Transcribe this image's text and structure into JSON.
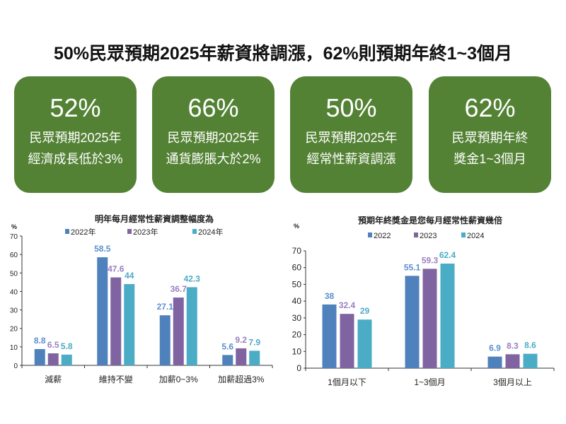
{
  "title": "50%民眾預期2025年薪資將調漲，62%則預期年終1~3個月",
  "cards": [
    {
      "value": "52%",
      "line1": "民眾預期2025年",
      "line2": "經濟成長低於3%"
    },
    {
      "value": "66%",
      "line1": "民眾預期2025年",
      "line2": "通貨膨脹大於2%"
    },
    {
      "value": "50%",
      "line1": "民眾預期2025年",
      "line2": "經常性薪資調漲"
    },
    {
      "value": "62%",
      "line1": "民眾預期年終",
      "line2": "獎金1~3個月"
    }
  ],
  "colors": {
    "card": "#548235",
    "s2022": "#4f81bd",
    "s2023": "#8064a2",
    "s2024": "#4bacc6"
  },
  "chart_data": [
    {
      "type": "bar",
      "title": "明年每月經常性薪資調整幅度為",
      "ylabel": "%",
      "ylim": [
        0,
        70
      ],
      "yticks": [
        "0",
        "10",
        "20",
        "30",
        "40",
        "50",
        "60",
        "70"
      ],
      "legend": "top",
      "grid": false,
      "categories": [
        "減薪",
        "維持不變",
        "加薪0~3%",
        "加薪超過3%"
      ],
      "series": [
        {
          "name": "2022年",
          "values": [
            8.8,
            58.5,
            27.1,
            5.6
          ]
        },
        {
          "name": "2023年",
          "values": [
            6.5,
            47.6,
            36.7,
            9.2
          ]
        },
        {
          "name": "2024年",
          "values": [
            5.8,
            44,
            42.3,
            7.9
          ]
        }
      ]
    },
    {
      "type": "bar",
      "title": "預期年終獎金是您每月經常性薪資幾倍",
      "ylabel": "%",
      "ylim": [
        0,
        70
      ],
      "yticks": [
        "0",
        "10",
        "20",
        "30",
        "40",
        "50",
        "60",
        "70"
      ],
      "legend": "top",
      "grid": false,
      "categories": [
        "1個月以下",
        "1~3個月",
        "3個月以上"
      ],
      "series": [
        {
          "name": "2022",
          "values": [
            38,
            55.1,
            6.9
          ]
        },
        {
          "name": "2023",
          "values": [
            32.4,
            59.3,
            8.3
          ]
        },
        {
          "name": "2024",
          "values": [
            29,
            62.4,
            8.6
          ]
        }
      ]
    }
  ]
}
